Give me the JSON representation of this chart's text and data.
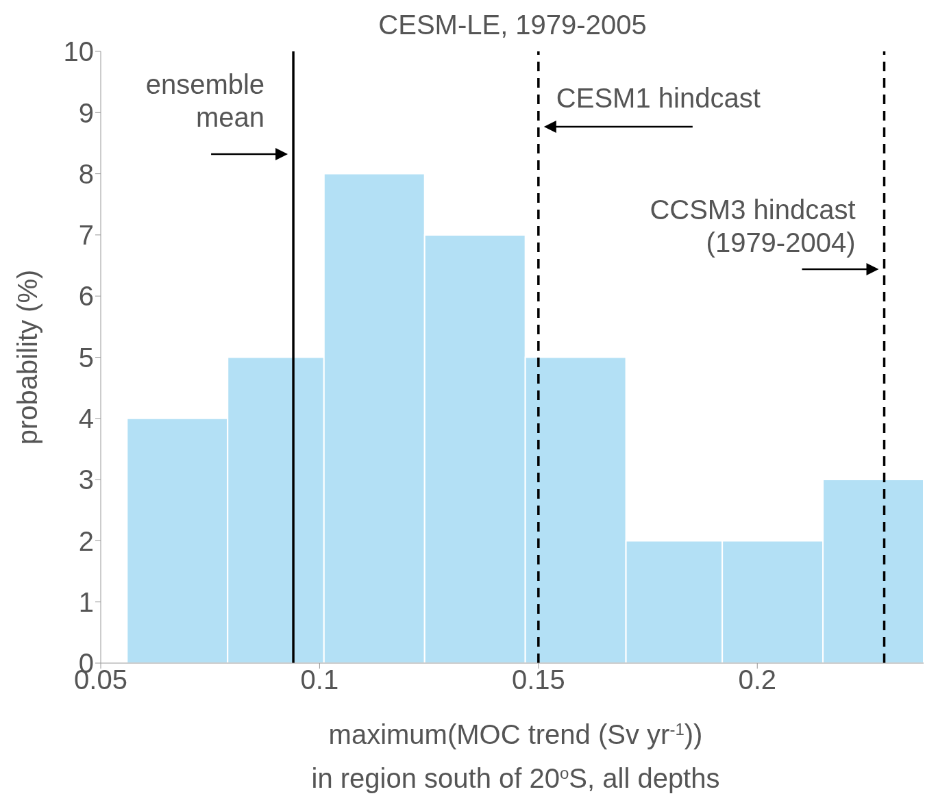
{
  "chart_data": {
    "type": "histogram",
    "title": "CESM-LE, 1979-2005",
    "xlabel": "maximum(MOC trend (Sv yr$^{-1}$))\nin region south of 20$^{o}$S, all depths",
    "ylabel": "probability (%)",
    "bins": [
      0.056,
      0.079,
      0.101,
      0.124,
      0.147,
      0.17,
      0.192,
      0.215,
      0.238
    ],
    "values": [
      4,
      5,
      8,
      7,
      5,
      2,
      2,
      3
    ],
    "color": "#b3e0f5",
    "xlim": [
      0.05,
      0.238
    ],
    "xticks": [
      0.05,
      0.1,
      0.15,
      0.2
    ],
    "ylim": [
      0,
      10
    ],
    "yticks": [
      0,
      1,
      2,
      3,
      4,
      5,
      6,
      7,
      8,
      9,
      10
    ],
    "ref_lines": [
      {
        "axis": "x",
        "value": 0.094,
        "label": "ensemble\nmean",
        "color": "#000000",
        "line_style": "solid"
      },
      {
        "axis": "x",
        "value": 0.15,
        "label": "CESM1 hindcast",
        "color": "#000000",
        "line_style": "dashed"
      },
      {
        "axis": "x",
        "value": 0.229,
        "label": "CCSM3 hindcast\n(1979-2004)",
        "color": "#000000",
        "line_style": "dashed"
      }
    ]
  }
}
